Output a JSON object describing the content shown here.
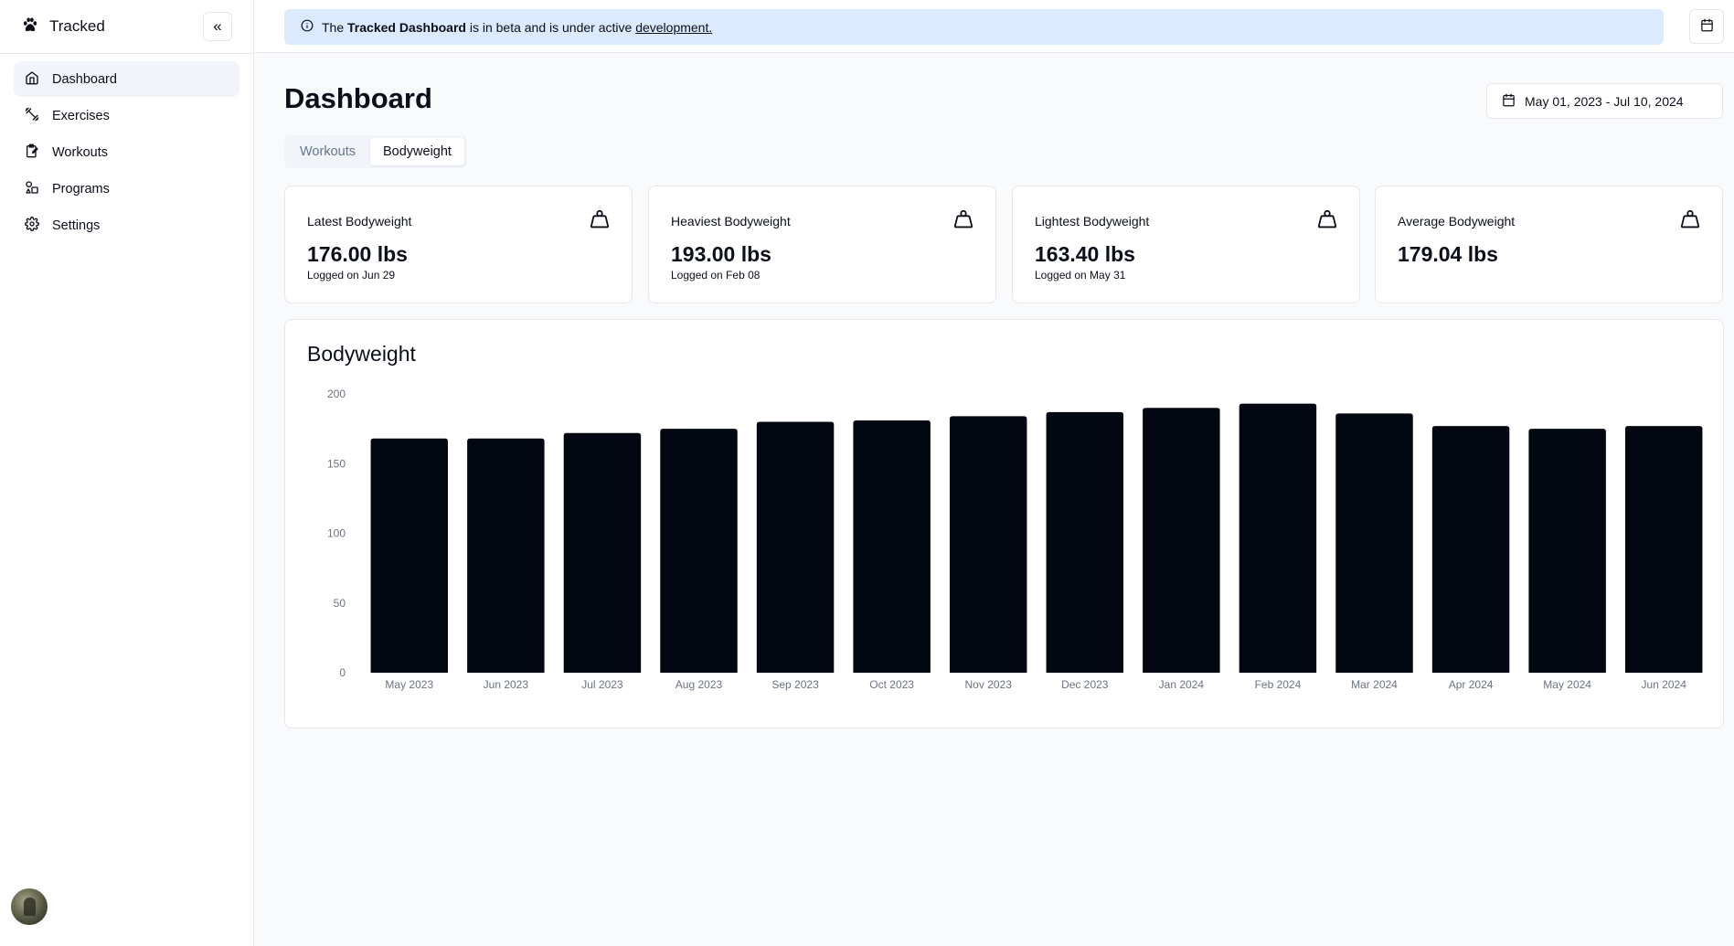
{
  "app": {
    "name": "Tracked",
    "collapse_icon": "«"
  },
  "sidebar": {
    "items": [
      {
        "label": "Dashboard",
        "icon": "home-icon",
        "active": true
      },
      {
        "label": "Exercises",
        "icon": "dumbbell-icon",
        "active": false
      },
      {
        "label": "Workouts",
        "icon": "clipboard-icon",
        "active": false
      },
      {
        "label": "Programs",
        "icon": "shapes-icon",
        "active": false
      },
      {
        "label": "Settings",
        "icon": "gear-icon",
        "active": false
      }
    ]
  },
  "banner": {
    "prefix": "The",
    "bold": "Tracked Dashboard",
    "middle": "is in beta and is under active",
    "link": "development.",
    "color": "#dbeafe"
  },
  "page": {
    "title": "Dashboard",
    "date_range": "May 01, 2023 - Jul 10, 2024"
  },
  "tabs": [
    {
      "label": "Workouts",
      "active": false
    },
    {
      "label": "Bodyweight",
      "active": true
    }
  ],
  "cards": [
    {
      "title": "Latest Bodyweight",
      "value": "176.00 lbs",
      "sub": "Logged on Jun 29",
      "icon": "weight-icon"
    },
    {
      "title": "Heaviest Bodyweight",
      "value": "193.00 lbs",
      "sub": "Logged on Feb 08",
      "icon": "weight-icon"
    },
    {
      "title": "Lightest Bodyweight",
      "value": "163.40 lbs",
      "sub": "Logged on May 31",
      "icon": "weight-icon"
    },
    {
      "title": "Average Bodyweight",
      "value": "179.04 lbs",
      "sub": "",
      "icon": "weight-icon"
    }
  ],
  "chart_data": {
    "type": "bar",
    "title": "Bodyweight",
    "categories": [
      "May 2023",
      "Jun 2023",
      "Jul 2023",
      "Aug 2023",
      "Sep 2023",
      "Oct 2023",
      "Nov 2023",
      "Dec 2023",
      "Jan 2024",
      "Feb 2024",
      "Mar 2024",
      "Apr 2024",
      "May 2024",
      "Jun 2024"
    ],
    "values": [
      168,
      168,
      172,
      175,
      180,
      181,
      184,
      187,
      190,
      193,
      186,
      177,
      175,
      177
    ],
    "yticks": [
      0,
      50,
      100,
      150,
      200
    ],
    "ylim": [
      0,
      200
    ],
    "bar_color": "#030712",
    "grid": false
  }
}
